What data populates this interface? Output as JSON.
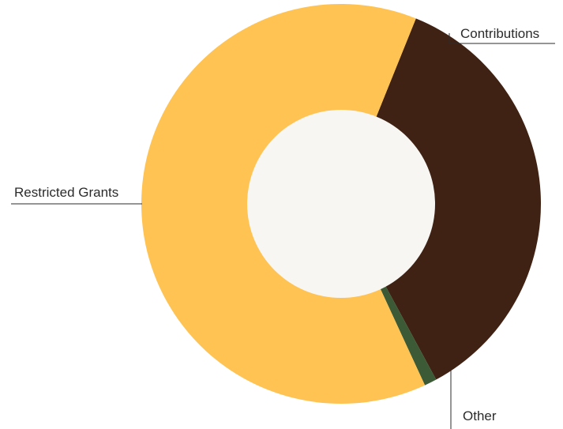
{
  "chart_data": {
    "type": "pie",
    "variant": "donut",
    "title": "",
    "slices": [
      {
        "label": "Contributions",
        "value": 36.0,
        "color": "#3f2213"
      },
      {
        "label": "Other",
        "value": 1.0,
        "color": "#3b5a35"
      },
      {
        "label": "Restricted Grants",
        "value": 63.0,
        "color": "#ffc353"
      }
    ],
    "center_color": "#f8f6f3",
    "start_angle_deg": 22,
    "legend": "none",
    "labels": "outside-with-leader-lines"
  }
}
